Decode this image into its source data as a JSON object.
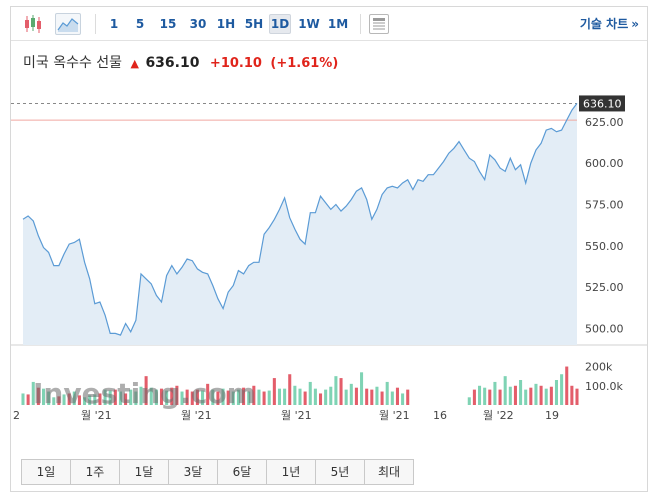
{
  "toolbar": {
    "icons": [
      "candlestick-icon",
      "area-chart-icon",
      "table-icon"
    ],
    "timeframes": [
      "1",
      "5",
      "15",
      "30",
      "1H",
      "5H",
      "1D",
      "1W",
      "1M"
    ],
    "active_timeframe": "1D",
    "tech_chart_label": "기술 차트",
    "tech_chart_chevron": "»"
  },
  "title": {
    "name": "미국 옥수수 선물",
    "price": "636.10",
    "change": "+10.10",
    "change_pct": "(+1.61%)"
  },
  "watermark": "Investing.com",
  "colors": {
    "line": "#5b9bd5",
    "area": "#e3edf6",
    "up_volume": "#7fd3b4",
    "down_volume": "#e35d6a",
    "accent_red": "#e0241b",
    "link_blue": "#1e5aa0",
    "price_tag_bg": "#333333"
  },
  "chart_data": {
    "type": "area",
    "ylim": [
      490,
      640
    ],
    "y_ticks": [
      "625.00",
      "600.00",
      "575.00",
      "550.00",
      "525.00",
      "500.00"
    ],
    "y_tick_values": [
      625,
      600,
      575,
      550,
      525,
      500
    ],
    "last_price_label": "636.10",
    "last_price": 636.1,
    "prev_close": 626,
    "x_labels": [
      "2",
      "월 '21",
      "월 '21",
      "월 '21",
      "월 '21",
      "16",
      "월 '22",
      "19"
    ],
    "values": [
      566,
      568,
      565,
      556,
      549,
      546,
      538,
      538,
      545,
      551,
      552,
      554,
      540,
      530,
      515,
      516,
      508,
      497,
      497,
      496,
      503,
      498,
      505,
      533,
      530,
      527,
      520,
      516,
      532,
      538,
      533,
      537,
      542,
      541,
      536,
      534,
      533,
      526,
      518,
      512,
      522,
      526,
      535,
      533,
      538,
      540,
      540,
      557,
      561,
      566,
      572,
      579,
      567,
      560,
      554,
      551,
      570,
      570,
      580,
      576,
      572,
      575,
      571,
      574,
      578,
      583,
      585,
      578,
      566,
      572,
      581,
      585,
      586,
      585,
      588,
      590,
      584,
      590,
      589,
      593,
      593,
      597,
      601,
      606,
      609,
      613,
      608,
      603,
      601,
      595,
      590,
      605,
      602,
      597,
      595,
      603,
      596,
      599,
      588,
      600,
      608,
      612,
      620,
      621,
      619,
      620,
      626,
      632,
      636.1
    ],
    "volume_colors": [
      "up",
      "down",
      "up",
      "down",
      "up",
      "up",
      "up",
      "down",
      "up",
      "down",
      "up",
      "down",
      "up",
      "up",
      "up",
      "down",
      "up",
      "up",
      "down",
      "up",
      "down",
      "up",
      "up",
      "up",
      "down",
      "up",
      "up",
      "down",
      "up",
      "down",
      "down",
      "up",
      "down",
      "down",
      "down",
      "up",
      "down",
      "up",
      "down",
      "up",
      "down",
      "up",
      "up",
      "down",
      "up",
      "down",
      "up",
      "down",
      "up",
      "down",
      "up",
      "up",
      "down",
      "up",
      "up",
      "down",
      "up",
      "up",
      "down",
      "up",
      "up",
      "up",
      "down",
      "up",
      "up",
      "down",
      "up",
      "down",
      "down",
      "up",
      "down",
      "up",
      "up",
      "down",
      "up",
      "down",
      "up",
      "up",
      "up",
      "down",
      "up",
      "down",
      "up",
      "up",
      "up",
      "down",
      "up",
      "up",
      "down",
      "up",
      "up",
      "down",
      "up",
      "down",
      "up",
      "up",
      "down",
      "up",
      "up",
      "down",
      "up",
      "down",
      "up",
      "down",
      "up",
      "up",
      "down",
      "down",
      "down"
    ],
    "volume_values": [
      60,
      55,
      120,
      90,
      85,
      70,
      40,
      45,
      55,
      60,
      70,
      50,
      40,
      50,
      55,
      60,
      80,
      75,
      80,
      70,
      60,
      80,
      70,
      95,
      150,
      90,
      80,
      85,
      75,
      90,
      100,
      70,
      80,
      70,
      80,
      75,
      110,
      80,
      70,
      85,
      75,
      70,
      80,
      90,
      70,
      100,
      80,
      70,
      75,
      140,
      85,
      85,
      160,
      100,
      85,
      70,
      120,
      85,
      60,
      80,
      95,
      150,
      140,
      80,
      110,
      90,
      170,
      85,
      80,
      95,
      70,
      120,
      70,
      90,
      60,
      80,
      0,
      0,
      0,
      0,
      0,
      0,
      0,
      0,
      0,
      0,
      0,
      40,
      80,
      100,
      90,
      80,
      120,
      80,
      150,
      95,
      100,
      130,
      80,
      90,
      110,
      100,
      85,
      95,
      130,
      160,
      200,
      100,
      85
    ],
    "volume_y_ticks": [
      "200k",
      "100.0k"
    ],
    "volume_y_tick_values": [
      200,
      100
    ]
  },
  "ranges": [
    "1일",
    "1주",
    "1달",
    "3달",
    "6달",
    "1년",
    "5년",
    "최대"
  ]
}
